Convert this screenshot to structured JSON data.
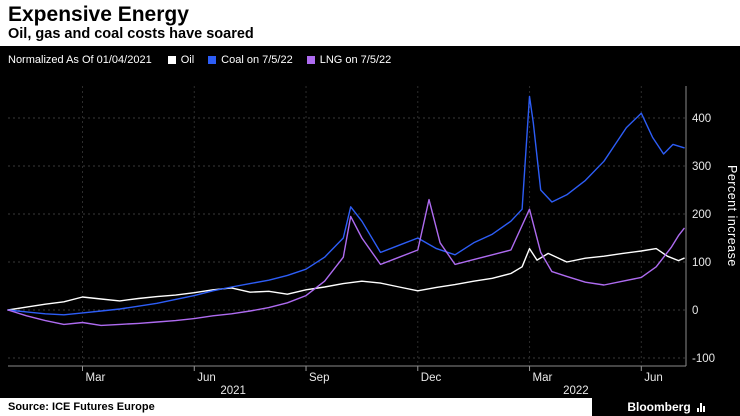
{
  "header": {
    "title": "Expensive Energy",
    "subtitle": "Oil, gas and coal costs have soared"
  },
  "legend": {
    "note": "Normalized As Of 01/04/2021",
    "items": [
      {
        "label": "Oil",
        "color": "#FFFFFF"
      },
      {
        "label": "Coal on 7/5/22",
        "color": "#2D5DF6"
      },
      {
        "label": "LNG on 7/5/22",
        "color": "#AE6BF0"
      }
    ]
  },
  "footer": {
    "source": "Source: ICE Futures Europe",
    "brand": "Bloomberg"
  },
  "chart_data": {
    "type": "line",
    "title": "Expensive Energy",
    "subtitle": "Oil, gas and coal costs have soared",
    "note": "Normalized As Of 01/04/2021",
    "ylabel": "Percent increase",
    "x_unit": "months since 2021-01-04",
    "x_range": [
      0,
      18.2
    ],
    "ylim": [
      -100,
      460
    ],
    "yticks": [
      -100,
      0,
      100,
      200,
      300,
      400
    ],
    "grid": true,
    "x_ticks": [
      {
        "pos": 2,
        "label": "Mar"
      },
      {
        "pos": 5,
        "label": "Jun"
      },
      {
        "pos": 8,
        "label": "Sep"
      },
      {
        "pos": 11,
        "label": "Dec"
      },
      {
        "pos": 14,
        "label": "Mar"
      },
      {
        "pos": 17,
        "label": "Jun"
      }
    ],
    "year_labels": [
      {
        "pos": 5.7,
        "label": "2021"
      },
      {
        "pos": 14.9,
        "label": "2022"
      }
    ],
    "series": [
      {
        "name": "Oil",
        "color": "#FFFFFF",
        "x": [
          0,
          0.5,
          1,
          1.5,
          2,
          2.5,
          3,
          3.5,
          4,
          4.5,
          5,
          5.5,
          6,
          6.5,
          7,
          7.5,
          8,
          8.5,
          9,
          9.5,
          10,
          10.5,
          11,
          11.5,
          12,
          12.5,
          13,
          13.5,
          13.8,
          14,
          14.2,
          14.5,
          15,
          15.5,
          16,
          16.5,
          17,
          17.4,
          17.7,
          18,
          18.15
        ],
        "y": [
          0,
          6,
          12,
          17,
          27,
          23,
          19,
          24,
          28,
          31,
          36,
          42,
          46,
          37,
          39,
          33,
          42,
          48,
          55,
          60,
          56,
          48,
          40,
          47,
          53,
          60,
          66,
          76,
          90,
          128,
          104,
          118,
          100,
          108,
          112,
          118,
          123,
          128,
          112,
          103,
          108
        ]
      },
      {
        "name": "Coal on 7/5/22",
        "color": "#2D5DF6",
        "x": [
          0,
          0.5,
          1,
          1.5,
          2,
          2.5,
          3,
          3.5,
          4,
          4.5,
          5,
          5.5,
          6,
          6.5,
          7,
          7.5,
          8,
          8.5,
          9,
          9.2,
          9.5,
          10,
          10.5,
          11,
          11.5,
          12,
          12.5,
          13,
          13.5,
          13.8,
          14,
          14.1,
          14.3,
          14.6,
          15,
          15.5,
          16,
          16.3,
          16.6,
          17,
          17.3,
          17.6,
          17.85,
          18.15
        ],
        "y": [
          0,
          -4,
          -8,
          -10,
          -6,
          -2,
          2,
          8,
          14,
          22,
          30,
          40,
          48,
          55,
          62,
          72,
          85,
          110,
          150,
          215,
          185,
          120,
          135,
          150,
          128,
          115,
          140,
          158,
          185,
          210,
          445,
          390,
          250,
          225,
          240,
          270,
          310,
          345,
          380,
          410,
          360,
          325,
          345,
          338
        ]
      },
      {
        "name": "LNG on 7/5/22",
        "color": "#AE6BF0",
        "x": [
          0,
          0.5,
          1,
          1.5,
          2,
          2.5,
          3,
          3.5,
          4,
          4.5,
          5,
          5.5,
          6,
          6.5,
          7,
          7.5,
          8,
          8.5,
          9,
          9.2,
          9.5,
          10,
          10.5,
          11,
          11.3,
          11.6,
          12,
          12.5,
          13,
          13.5,
          14,
          14.3,
          14.6,
          15,
          15.5,
          16,
          16.5,
          17,
          17.4,
          17.8,
          18,
          18.15
        ],
        "y": [
          0,
          -12,
          -22,
          -30,
          -26,
          -32,
          -30,
          -28,
          -25,
          -22,
          -18,
          -12,
          -8,
          -2,
          5,
          15,
          30,
          60,
          110,
          195,
          150,
          95,
          110,
          125,
          230,
          140,
          95,
          105,
          115,
          125,
          210,
          120,
          80,
          70,
          58,
          52,
          60,
          68,
          90,
          130,
          155,
          170
        ]
      }
    ]
  }
}
